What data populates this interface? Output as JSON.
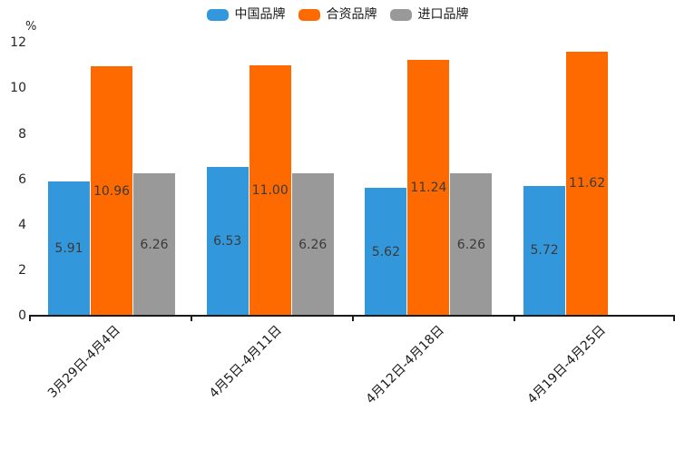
{
  "chart": {
    "unit": "%"
  },
  "chart_data": {
    "type": "bar",
    "categories": [
      "3月29日-4月4日",
      "4月5日-4月11日",
      "4月12日-4月18日",
      "4月19日-4月25日"
    ],
    "series": [
      {
        "name": "中国品牌",
        "color": "#3398DB",
        "values": [
          5.91,
          6.53,
          5.62,
          5.72
        ]
      },
      {
        "name": "合资品牌",
        "color": "#FF6A00",
        "values": [
          10.96,
          11.0,
          11.24,
          11.62
        ]
      },
      {
        "name": "进口品牌",
        "color": "#999999",
        "values": [
          6.26,
          6.26,
          6.26,
          null
        ]
      }
    ],
    "title": "",
    "xlabel": "",
    "ylabel": "%",
    "ylim": [
      0,
      12
    ],
    "yticks": [
      0,
      2,
      4,
      6,
      8,
      10,
      12
    ],
    "grid": false,
    "legend_position": "top",
    "value_labels": true,
    "value_label_decimals": 2
  }
}
